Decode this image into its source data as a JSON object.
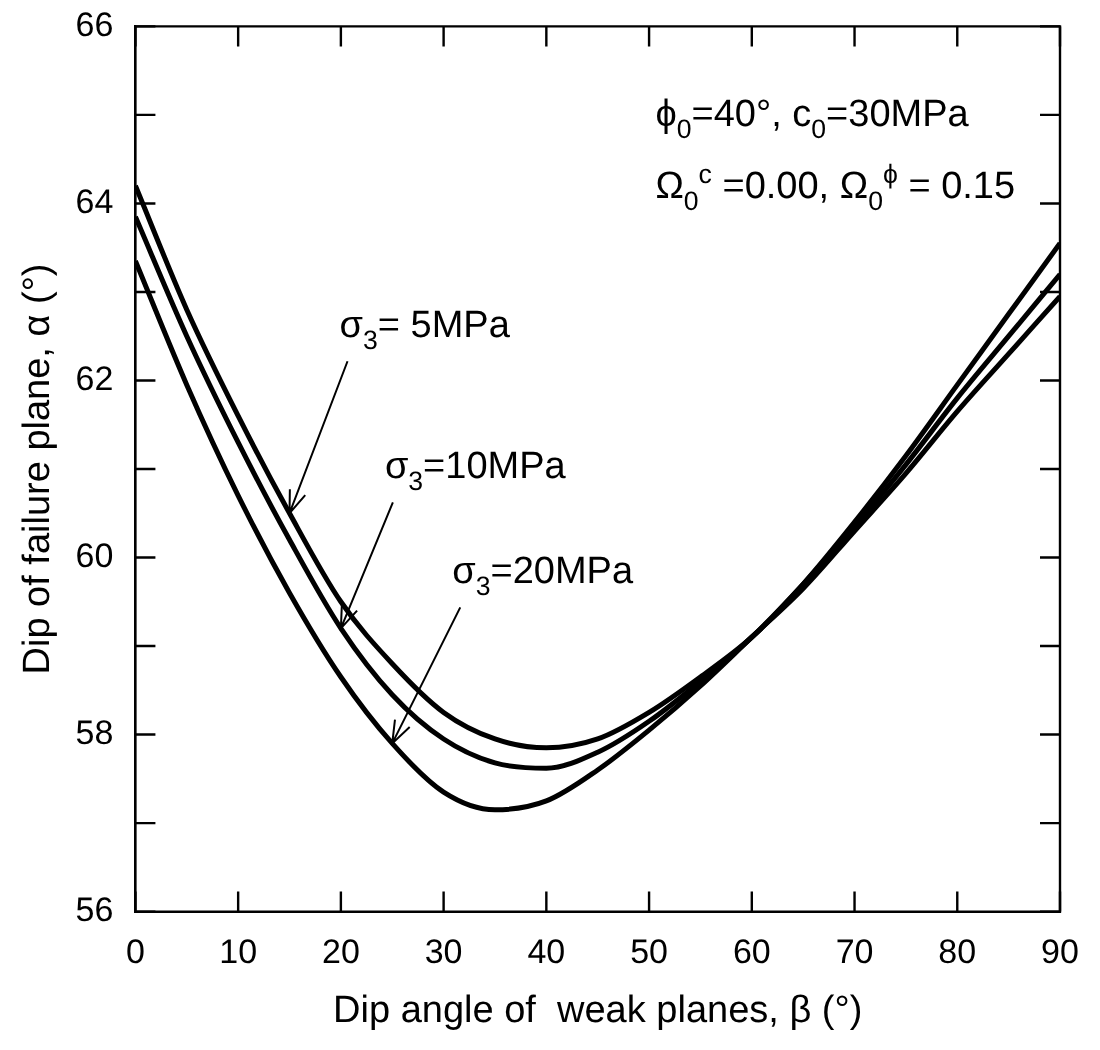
{
  "chart_data": {
    "type": "line",
    "xlabel": "Dip angle of  weak planes, β (°)",
    "ylabel": "Dip of failure plane, α (°)",
    "x": [
      0,
      5,
      10,
      15,
      20,
      25,
      30,
      35,
      40,
      45,
      50,
      55,
      60,
      65,
      70,
      75,
      80,
      85,
      90
    ],
    "series": [
      {
        "color": "#000000",
        "values": [
          64.2,
          62.8,
          61.6,
          60.5,
          59.5,
          58.8,
          58.25,
          57.95,
          57.85,
          57.95,
          58.25,
          58.65,
          59.1,
          59.7,
          60.4,
          61.15,
          61.95,
          62.75,
          63.55
        ]
      },
      {
        "color": "#000000",
        "values": [
          63.85,
          62.5,
          61.3,
          60.2,
          59.2,
          58.45,
          57.95,
          57.68,
          57.62,
          57.8,
          58.15,
          58.6,
          59.1,
          59.7,
          60.35,
          61.05,
          61.8,
          62.5,
          63.2
        ]
      },
      {
        "color": "#000000",
        "values": [
          63.35,
          61.95,
          60.7,
          59.6,
          58.65,
          57.9,
          57.35,
          57.15,
          57.25,
          57.6,
          58.05,
          58.55,
          59.1,
          59.65,
          60.3,
          60.95,
          61.65,
          62.3,
          62.95
        ]
      }
    ],
    "xlim": [
      0,
      90
    ],
    "xticks": [
      0,
      10,
      20,
      30,
      40,
      50,
      60,
      70,
      80,
      90
    ],
    "ylim": [
      56,
      66
    ],
    "yticks": [
      56,
      {
        "value": 57,
        "label": null
      },
      58,
      {
        "value": 59,
        "label": null
      },
      60,
      {
        "value": 61,
        "label": null
      },
      62,
      {
        "value": 63,
        "label": null
      },
      64,
      {
        "value": 65,
        "label": null
      },
      66
    ],
    "grid": false,
    "legend": false,
    "marker": "none",
    "line_style": "solid",
    "annotations": [
      "ϕ$_{0}$=40°, c$_{0}$=30MPa",
      "Ω$_{0}$$^{c}$ =0.00, Ω$_{0}$$^{ϕ}$ = 0.15",
      {
        "text": "σ$_{3}$= 5MPa",
        "x": 15,
        "y": 60.5
      },
      {
        "text": "σ$_{3}$=10MPa",
        "x": 20,
        "y": 59.2
      },
      {
        "text": "σ$_{3}$=20MPa",
        "x": 25,
        "y": 57.9
      }
    ]
  }
}
